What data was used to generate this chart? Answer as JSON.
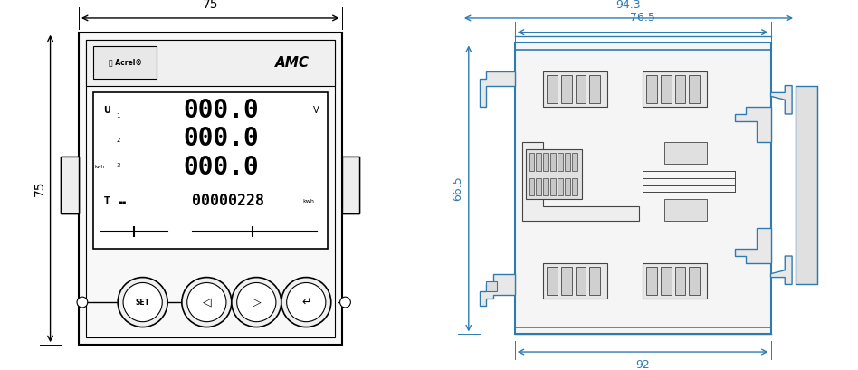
{
  "fig_width": 9.48,
  "fig_height": 4.09,
  "dpi": 100,
  "bg_color": "#ffffff",
  "lc": "#000000",
  "dc": "#000000",
  "sc": "#2e7bb0",
  "display_row1": "000.0",
  "display_row2": "000.0",
  "display_row3": "000.0",
  "display_row4": "00000228",
  "dim_75w": "75",
  "dim_75h": "75",
  "dim_943": "94.3",
  "dim_765": "76.5",
  "dim_665": "66.5",
  "dim_92": "92"
}
